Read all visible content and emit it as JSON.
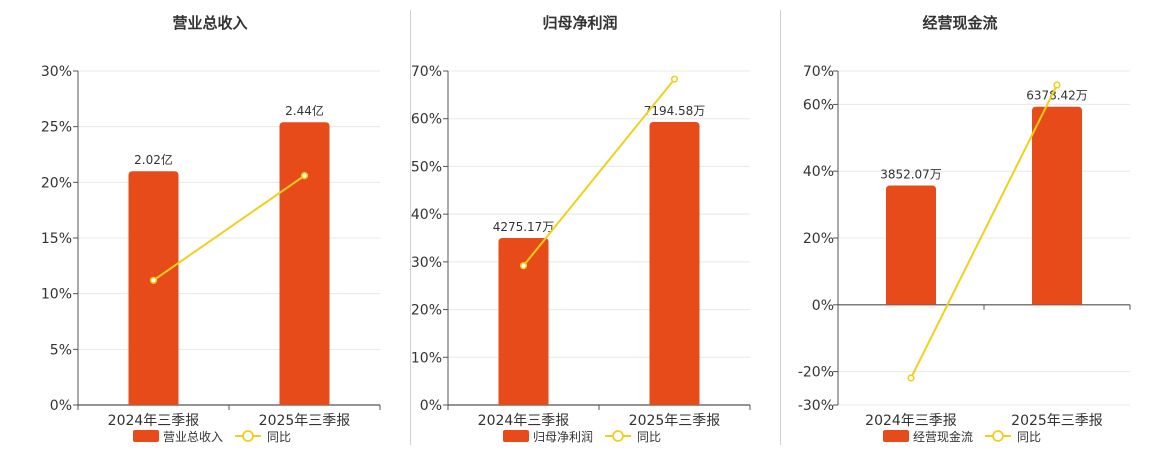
{
  "colors": {
    "bar": "#e84b1a",
    "line": "#f2cf1d",
    "grid": "#e8e8e8",
    "axis": "#555555"
  },
  "chart_data": [
    {
      "type": "bar",
      "title": "营业总收入",
      "categories": [
        "2024年三季报",
        "2025年三季报"
      ],
      "series": [
        {
          "name": "营业总收入",
          "type": "bar",
          "values": [
            21,
            25.4
          ],
          "labels": [
            "2.02亿",
            "2.44亿"
          ]
        },
        {
          "name": "同比",
          "type": "line",
          "values": [
            11.2,
            20.6
          ]
        }
      ],
      "yticks": [
        "0%",
        "5%",
        "10%",
        "15%",
        "20%",
        "25%",
        "30%"
      ],
      "ylim": [
        0,
        30
      ],
      "grid": true,
      "legend": "bottom"
    },
    {
      "type": "bar",
      "title": "归母净利润",
      "categories": [
        "2024年三季报",
        "2025年三季报"
      ],
      "series": [
        {
          "name": "归母净利润",
          "type": "bar",
          "values": [
            35,
            59.3
          ],
          "labels": [
            "4275.17万",
            "7194.58万"
          ]
        },
        {
          "name": "同比",
          "type": "line",
          "values": [
            29.2,
            68.3
          ]
        }
      ],
      "yticks": [
        "0%",
        "10%",
        "20%",
        "30%",
        "40%",
        "50%",
        "60%",
        "70%"
      ],
      "ylim": [
        0,
        70
      ],
      "grid": true,
      "legend": "bottom"
    },
    {
      "type": "bar",
      "title": "经营现金流",
      "categories": [
        "2024年三季报",
        "2025年三季报"
      ],
      "series": [
        {
          "name": "经营现金流",
          "type": "bar",
          "values": [
            35.7,
            59.3
          ],
          "labels": [
            "3852.07万",
            "6378.42万"
          ]
        },
        {
          "name": "同比",
          "type": "line",
          "values": [
            -21.9,
            65.8
          ]
        }
      ],
      "yticks": [
        "-30%",
        "-20%",
        "0%",
        "20%",
        "40%",
        "60%",
        "70%"
      ],
      "ytick_values": [
        -30,
        -20,
        0,
        20,
        40,
        60,
        70
      ],
      "ylim": [
        -30,
        70
      ],
      "grid": true,
      "legend": "bottom"
    }
  ]
}
